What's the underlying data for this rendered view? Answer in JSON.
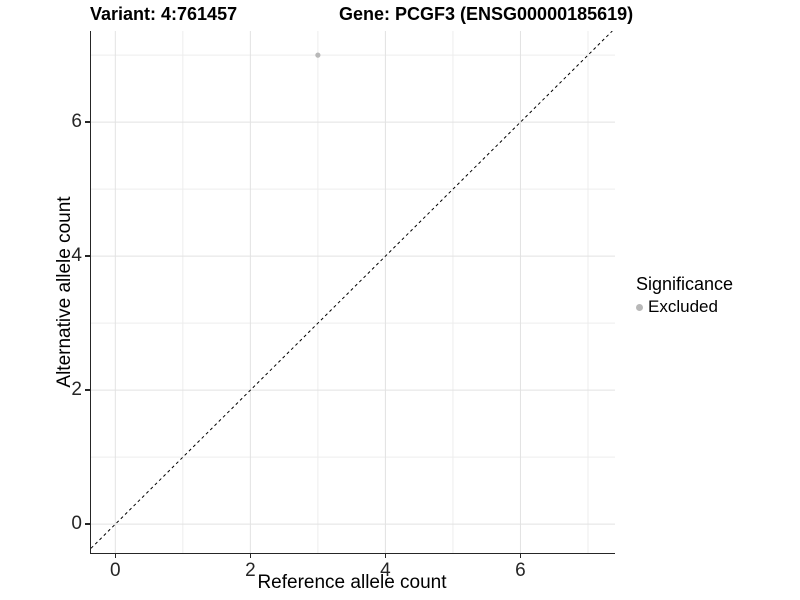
{
  "header": {
    "variant_title": "Variant: 4:761457",
    "gene_title": "Gene: PCGF3 (ENSG00000185619)"
  },
  "chart_data": {
    "type": "scatter",
    "xlabel": "Reference allele count",
    "ylabel": "Alternative allele count",
    "xlim": [
      -0.36,
      7.4
    ],
    "ylim": [
      -0.43,
      7.36
    ],
    "x_major_ticks": [
      0,
      2,
      4,
      6
    ],
    "y_major_ticks": [
      0,
      2,
      4,
      6
    ],
    "x_minor_gridlines": [
      1,
      3,
      5,
      7
    ],
    "y_minor_gridlines": [
      1,
      3,
      5,
      7
    ],
    "grid": "on",
    "points": [
      {
        "x": 3,
        "y": 7,
        "series": "Excluded"
      }
    ],
    "diagonal_reference_line": {
      "equation": "y = x",
      "style": "dashed",
      "color": "#000000"
    },
    "legend": {
      "title": "Significance",
      "position": "right",
      "entries": [
        {
          "label": "Excluded",
          "color": "#b8b8b8",
          "marker": "circle"
        }
      ]
    }
  },
  "colors": {
    "background": "#ffffff",
    "grid_major": "#e2e2e2",
    "grid_minor": "#ededed",
    "axis": "#262626",
    "tick_text": "#262626",
    "point": "#b8b8b8"
  }
}
